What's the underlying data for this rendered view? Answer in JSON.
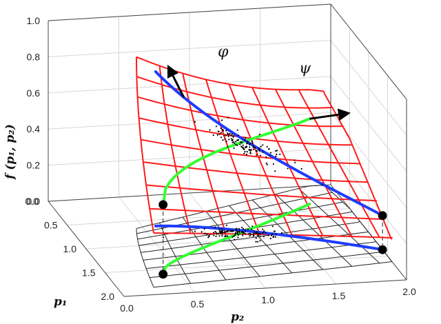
{
  "chart_data": {
    "type": "surface3d",
    "axes": {
      "x": {
        "label": "p₂",
        "ticks": [
          "0.0",
          "0.5",
          "1.0",
          "1.5",
          "2.0"
        ],
        "range": [
          0,
          2
        ]
      },
      "y": {
        "label": "p₁",
        "ticks": [
          "0.0",
          "0.5",
          "1.0",
          "1.5",
          "2.0"
        ],
        "range": [
          0,
          2
        ]
      },
      "z": {
        "label": "f (p₁, p₂)",
        "ticks": [
          "0.0",
          "0.2",
          "0.4",
          "0.6",
          "0.8",
          "1.0"
        ],
        "range": [
          0,
          1
        ]
      }
    },
    "grid": true,
    "surfaces": [
      {
        "name": "",
        "color": "#ff1a1a",
        "description": "mesh surface"
      },
      {
        "name": "",
        "color": "#222222",
        "description": "projection on p1-p2 plane"
      }
    ],
    "curves": [
      {
        "name": "",
        "color": "#1e3cff"
      },
      {
        "name": "",
        "color": "#33ff33"
      }
    ],
    "annotations": [
      {
        "text": "φ",
        "kind": "arrow"
      },
      {
        "text": "ψ",
        "kind": "arrow"
      }
    ],
    "markers": [
      {
        "name": "",
        "color": "#000000",
        "count": 4
      }
    ],
    "scatter_cloud": {
      "points": 240,
      "color": "#000000"
    }
  },
  "labels": {
    "x_axis": "p₂",
    "y_axis": "p₁",
    "z_axis": "f (p₁, p₂)",
    "phi": "φ",
    "psi": "ψ"
  }
}
